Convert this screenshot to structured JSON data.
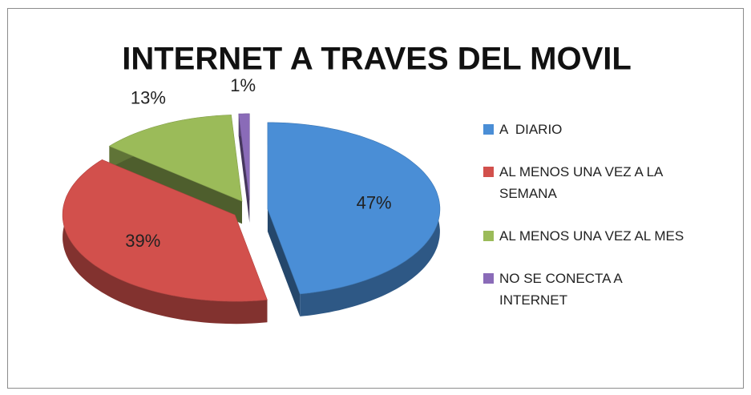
{
  "chart_data": {
    "type": "pie",
    "title": "INTERNET A TRAVES DEL MOVIL",
    "categories": [
      "A  DIARIO",
      "AL MENOS UNA VEZ A LA SEMANA",
      "AL MENOS UNA VEZ AL MES",
      "NO SE CONECTA A INTERNET"
    ],
    "values": [
      47,
      39,
      13,
      1
    ],
    "value_labels": [
      "47%",
      "39%",
      "13%",
      "1%"
    ],
    "colors": [
      "#4a8ed6",
      "#d2504c",
      "#9bbb59",
      "#8a6bb8"
    ],
    "legend": "right"
  }
}
